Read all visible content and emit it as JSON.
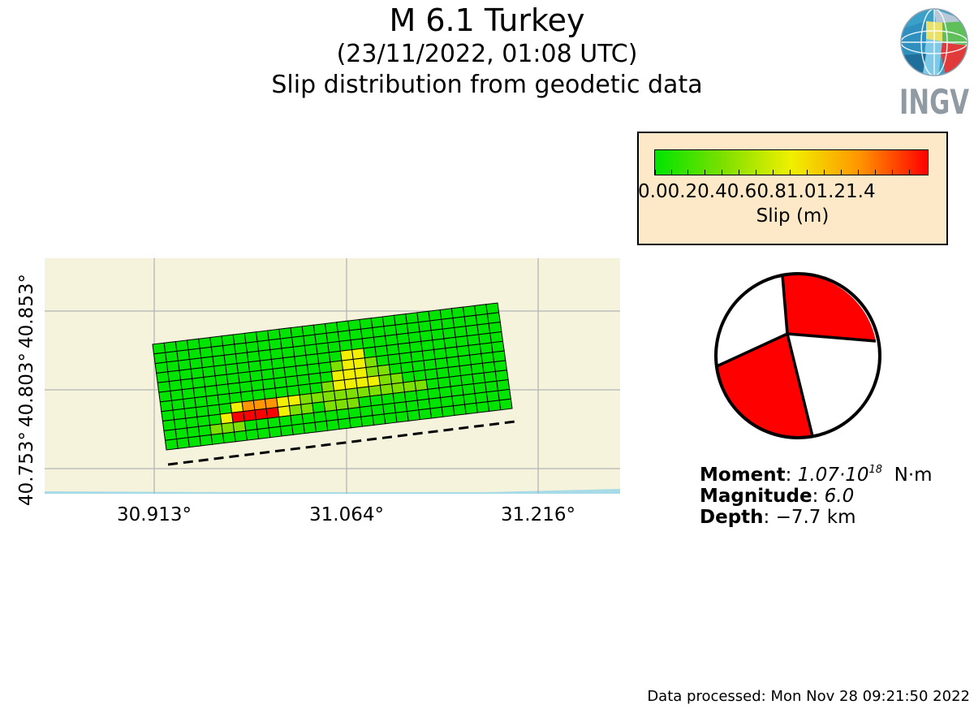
{
  "header": {
    "title": "M 6.1 Turkey",
    "subtitle": "(23/11/2022, 01:08 UTC)",
    "subtitle2": "Slip distribution from geodetic data"
  },
  "logo": {
    "text": "INGV"
  },
  "legend": {
    "ticks": [
      "0.0",
      "0.2",
      "0.4",
      "0.6",
      "0.8",
      "1.0",
      "1.2",
      "1.4"
    ],
    "label": "Slip (m)",
    "colors": [
      "#00e400",
      "#7de000",
      "#f0f000",
      "#ff9500",
      "#ff0000"
    ]
  },
  "map": {
    "x_ticks": [
      "30.913°",
      "31.064°",
      "31.216°"
    ],
    "y_ticks": [
      "40.753°",
      "40.803°",
      "40.853°"
    ],
    "land_color": "#f5f3dc",
    "sea_color": "#a8dbe8"
  },
  "event": {
    "moment_label": "Moment",
    "moment_value": "1.07·10",
    "moment_exp": "18",
    "moment_unit": "N·m",
    "magnitude_label": "Magnitude",
    "magnitude_value": "6.0",
    "depth_label": "Depth",
    "depth_value": "−7.7",
    "depth_unit": "km"
  },
  "footer": {
    "processed": "Data processed: Mon Nov 28 09:21:50 2022"
  }
}
